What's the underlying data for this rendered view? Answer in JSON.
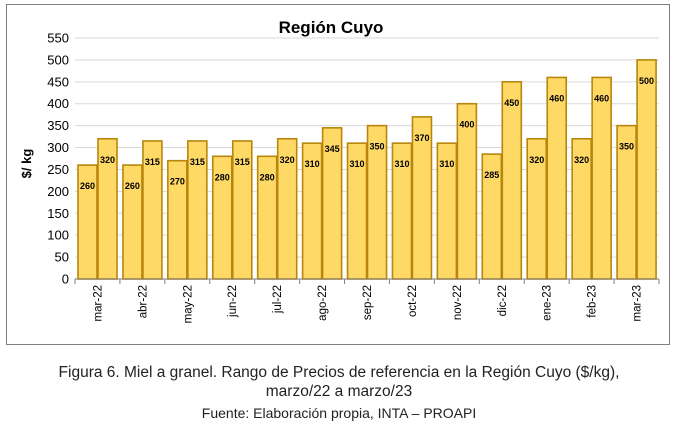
{
  "chart_data": {
    "type": "bar",
    "title": "Región Cuyo",
    "ylabel": "$/ kg",
    "xlabel": "",
    "ylim": [
      0,
      550
    ],
    "yticks": [
      0,
      50,
      100,
      150,
      200,
      250,
      300,
      350,
      400,
      450,
      500,
      550
    ],
    "grid": true,
    "legend": "none",
    "categories": [
      "mar-22",
      "abr-22",
      "may-22",
      "jun-22",
      "jul-22",
      "ago-22",
      "sep-22",
      "oct-22",
      "nov-22",
      "dic-22",
      "ene-23",
      "feb-23",
      "mar-23"
    ],
    "series": [
      {
        "values": [
          260,
          260,
          270,
          280,
          280,
          310,
          310,
          310,
          310,
          285,
          320,
          320,
          350
        ]
      },
      {
        "values": [
          320,
          315,
          315,
          315,
          320,
          345,
          350,
          370,
          400,
          450,
          460,
          460,
          500
        ]
      }
    ],
    "colors": {
      "bar_fill": "#FFD966",
      "bar_stroke": "#B8860B",
      "grid": "#d9d9d9",
      "axis": "#7f7f7f"
    }
  },
  "caption": {
    "line1": "Figura 6. Miel a granel. Rango de Precios de referencia en la Región Cuyo ($/kg),",
    "line2": "marzo/22 a marzo/23",
    "source": "Fuente: Elaboración propia, INTA – PROAPI"
  }
}
